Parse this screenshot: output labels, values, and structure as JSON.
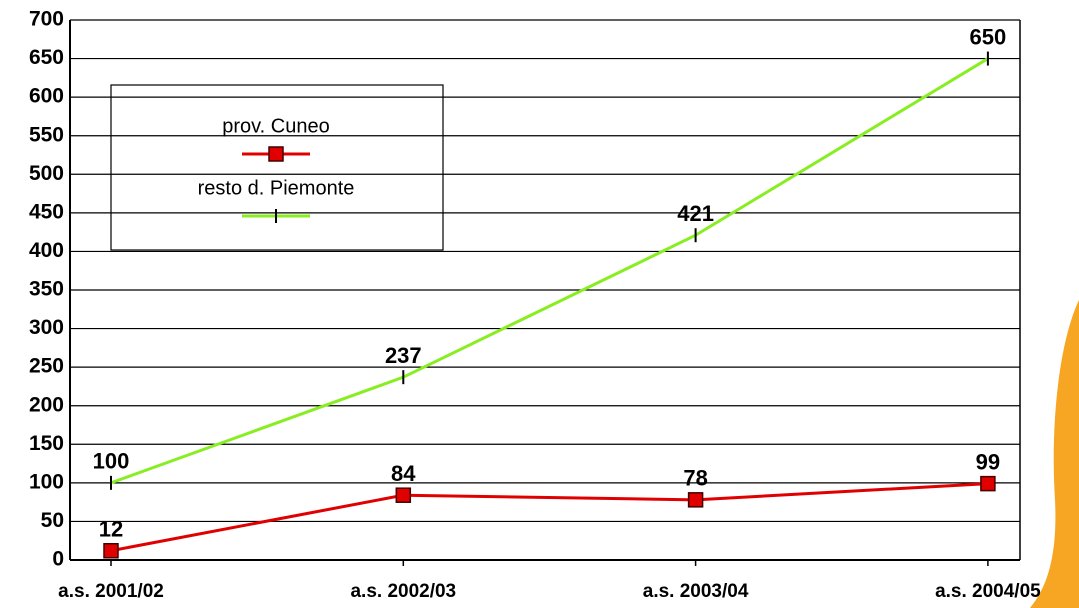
{
  "chart_data": {
    "type": "line",
    "categories": [
      "a.s. 2001/02",
      "a.s. 2002/03",
      "a.s. 2003/04",
      "a.s. 2004/05"
    ],
    "series": [
      {
        "name": "prov. Cuneo",
        "color": "#e00000",
        "values": [
          12,
          84,
          78,
          99
        ]
      },
      {
        "name": "resto d. Piemonte",
        "color": "#88ee22",
        "values": [
          100,
          237,
          421,
          650
        ]
      }
    ],
    "ylim": [
      0,
      700
    ],
    "yticks": [
      0,
      50,
      100,
      150,
      200,
      250,
      300,
      350,
      400,
      450,
      500,
      550,
      600,
      650,
      700
    ],
    "grid": true,
    "legend": "upper left"
  }
}
